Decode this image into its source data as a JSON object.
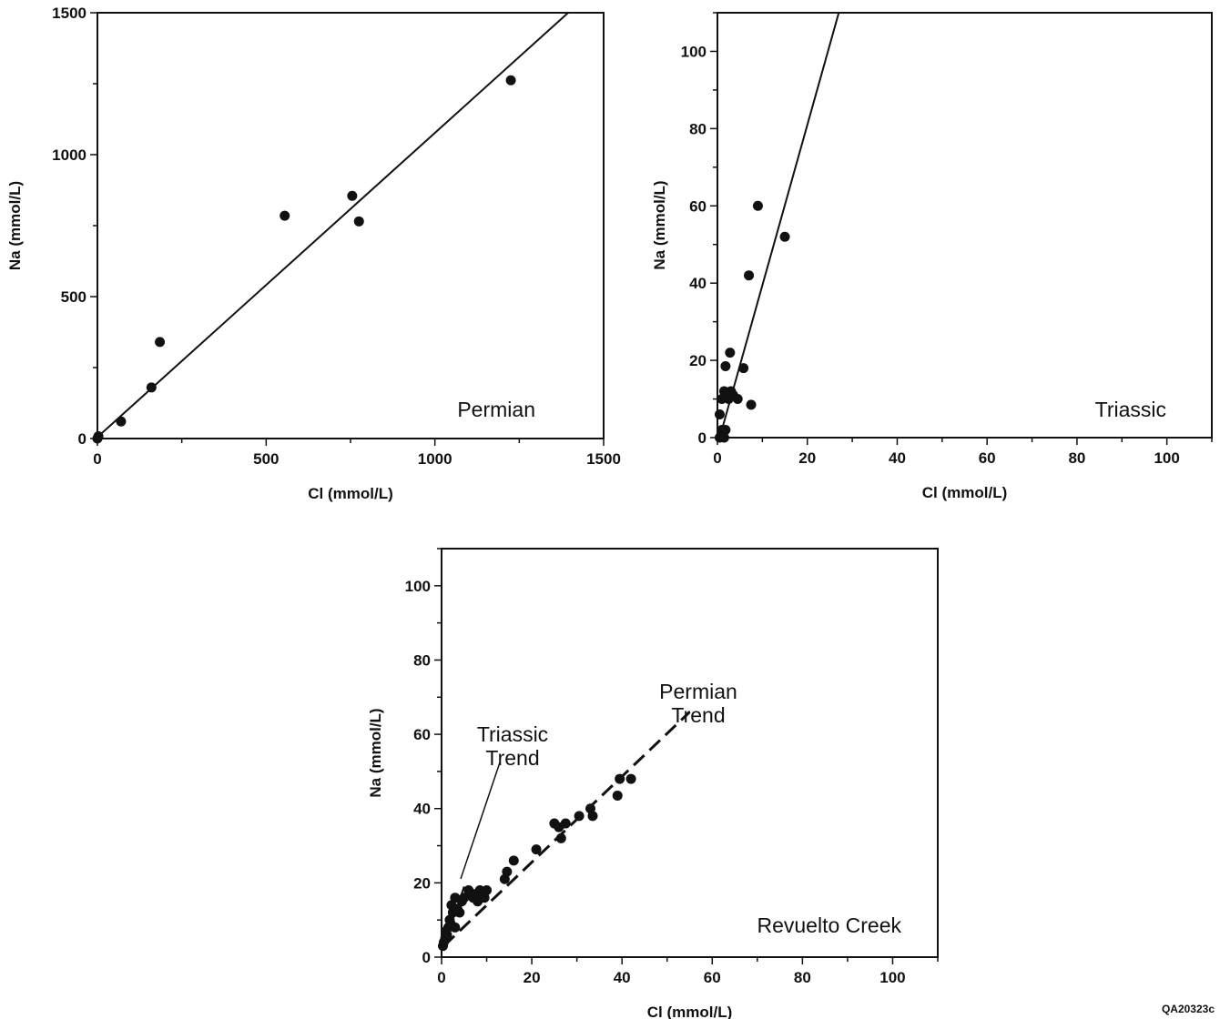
{
  "figure_id": "QA20323c",
  "chart_data": [
    {
      "type": "scatter",
      "panel_label": "Permian",
      "xlabel": "Cl (mmol/L)",
      "ylabel": "Na (mmol/L)",
      "xlim": [
        0,
        1500
      ],
      "ylim": [
        0,
        1500
      ],
      "xticks": [
        0,
        500,
        1000,
        1500
      ],
      "yticks": [
        0,
        500,
        1000,
        1500
      ],
      "points": [
        {
          "x": 0,
          "y": 0
        },
        {
          "x": 3,
          "y": 8
        },
        {
          "x": 70,
          "y": 60
        },
        {
          "x": 160,
          "y": 180
        },
        {
          "x": 185,
          "y": 340
        },
        {
          "x": 555,
          "y": 785
        },
        {
          "x": 755,
          "y": 855
        },
        {
          "x": 775,
          "y": 765
        },
        {
          "x": 1225,
          "y": 1262
        }
      ],
      "trend": {
        "style": "solid",
        "from": [
          0,
          5
        ],
        "to": [
          1395,
          1500
        ]
      }
    },
    {
      "type": "scatter",
      "panel_label": "Triassic",
      "xlabel": "Cl (mmol/L)",
      "ylabel": "Na (mmol/L)",
      "xlim": [
        0,
        110
      ],
      "ylim": [
        0,
        110
      ],
      "xticks": [
        0,
        20,
        40,
        60,
        80,
        100
      ],
      "yticks": [
        0,
        20,
        40,
        60,
        80,
        100
      ],
      "points": [
        {
          "x": 0.5,
          "y": 0
        },
        {
          "x": 1.5,
          "y": 0
        },
        {
          "x": 1.8,
          "y": 2
        },
        {
          "x": 1,
          "y": 2
        },
        {
          "x": 0.5,
          "y": 6
        },
        {
          "x": 1,
          "y": 10
        },
        {
          "x": 1.5,
          "y": 12
        },
        {
          "x": 2,
          "y": 11
        },
        {
          "x": 2.5,
          "y": 10
        },
        {
          "x": 3,
          "y": 12
        },
        {
          "x": 3.5,
          "y": 11
        },
        {
          "x": 4.5,
          "y": 10
        },
        {
          "x": 1.8,
          "y": 18.5
        },
        {
          "x": 2.8,
          "y": 22
        },
        {
          "x": 5.8,
          "y": 18
        },
        {
          "x": 7.5,
          "y": 8.5
        },
        {
          "x": 7,
          "y": 42
        },
        {
          "x": 9,
          "y": 60
        },
        {
          "x": 15,
          "y": 52
        }
      ],
      "trend": {
        "style": "solid",
        "from": [
          0.5,
          0
        ],
        "to": [
          27,
          110
        ]
      }
    },
    {
      "type": "scatter",
      "panel_label": "Revuelto Creek",
      "xlabel": "Cl (mmol/L)",
      "ylabel": "Na (mmol/L)",
      "xlim": [
        0,
        110
      ],
      "ylim": [
        0,
        110
      ],
      "xticks": [
        0,
        20,
        40,
        60,
        80,
        100
      ],
      "yticks": [
        0,
        20,
        40,
        60,
        80,
        100
      ],
      "annotations": [
        {
          "lines": [
            "Triassic",
            "Trend"
          ]
        },
        {
          "lines": [
            "Permian",
            "Trend"
          ]
        }
      ],
      "points": [
        {
          "x": 0.3,
          "y": 3
        },
        {
          "x": 0.5,
          "y": 4
        },
        {
          "x": 0.8,
          "y": 5
        },
        {
          "x": 1,
          "y": 7
        },
        {
          "x": 1.2,
          "y": 6
        },
        {
          "x": 1.5,
          "y": 8
        },
        {
          "x": 1.8,
          "y": 10
        },
        {
          "x": 2,
          "y": 9
        },
        {
          "x": 2.2,
          "y": 14
        },
        {
          "x": 2.5,
          "y": 12
        },
        {
          "x": 3,
          "y": 16
        },
        {
          "x": 3,
          "y": 8
        },
        {
          "x": 3.5,
          "y": 13
        },
        {
          "x": 4,
          "y": 12
        },
        {
          "x": 4.5,
          "y": 15
        },
        {
          "x": 5,
          "y": 16
        },
        {
          "x": 6,
          "y": 18
        },
        {
          "x": 6.5,
          "y": 17
        },
        {
          "x": 7,
          "y": 16
        },
        {
          "x": 7.5,
          "y": 17
        },
        {
          "x": 8,
          "y": 15
        },
        {
          "x": 8.5,
          "y": 18
        },
        {
          "x": 9,
          "y": 17
        },
        {
          "x": 9.5,
          "y": 16
        },
        {
          "x": 10,
          "y": 18
        },
        {
          "x": 14,
          "y": 21
        },
        {
          "x": 14.5,
          "y": 23
        },
        {
          "x": 16,
          "y": 26
        },
        {
          "x": 21,
          "y": 29
        },
        {
          "x": 25,
          "y": 36
        },
        {
          "x": 26,
          "y": 35
        },
        {
          "x": 26.5,
          "y": 32
        },
        {
          "x": 27.5,
          "y": 36
        },
        {
          "x": 30.5,
          "y": 38
        },
        {
          "x": 33,
          "y": 40
        },
        {
          "x": 33.5,
          "y": 38
        },
        {
          "x": 39,
          "y": 43.5
        },
        {
          "x": 39.5,
          "y": 48
        },
        {
          "x": 42,
          "y": 48
        }
      ],
      "trends": [
        {
          "name": "Triassic Trend",
          "style": "solid",
          "from": [
            0.5,
            3
          ],
          "to": [
            5,
            19
          ]
        },
        {
          "name": "Permian Trend",
          "style": "dashed",
          "from": [
            0.5,
            3
          ],
          "to": [
            55,
            66
          ]
        }
      ]
    }
  ]
}
